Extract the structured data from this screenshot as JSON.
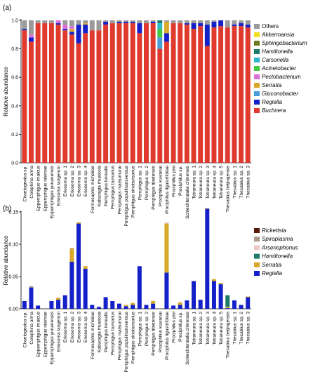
{
  "panels": [
    {
      "panel_label": "(a)",
      "chart_data": {
        "type": "bar",
        "stacked": true,
        "ylabel": "Relative abundance",
        "ylim": [
          0,
          1
        ],
        "yticks": [
          "0.0",
          "0.2",
          "0.4",
          "0.6",
          "0.8",
          "1.0"
        ],
        "categories": [
          "Chaetogeoica sp.",
          "Colophina arma",
          "Eppemphigus imaicus",
          "Eppemphigus nisimae",
          "Eppemphigus yunanensis",
          "Eriosoma langerum",
          "Eriosoma sp. 1",
          "Eriosoma sp. 2",
          "Eriosoma sp. 3",
          "Eriosoma sp. 4",
          "Formosaphis micheliae",
          "Kaburagia rhusicola",
          "Pemphigus borealis",
          "Pemphigus bursarius",
          "Pemphigus matsumurai",
          "Pemphigus populitransversus",
          "Pemphigus sinobursarius",
          "Pemphigus sp. 1",
          "Pemphigus sp. 2",
          "Pemphigus tibetensis",
          "Prociphilus kuwanai",
          "Prociphilus ligustrifoliae",
          "Prociphilus pini",
          "Prociphilus sp.",
          "Schlechtendalia chinensis",
          "Tetraneura sp. 1",
          "Tetraneura sp. 2",
          "Tetraneura sp. 3",
          "Tetraneura sp. 4",
          "Tetraneura sp. 5",
          "Thecabius beijingensis",
          "Thecabius sp. 1",
          "Thecabius sp. 2",
          "Thecabius sp. 3"
        ],
        "series": [
          {
            "name": "Buchnera",
            "color": "#e03a2f",
            "values": [
              0.93,
              0.85,
              0.98,
              0.98,
              0.98,
              0.97,
              0.93,
              0.9,
              0.84,
              0.91,
              0.93,
              0.93,
              0.97,
              0.98,
              0.98,
              0.98,
              0.98,
              0.91,
              0.98,
              0.98,
              0.8,
              0.85,
              0.98,
              0.98,
              0.97,
              0.94,
              0.96,
              0.82,
              0.95,
              0.96,
              0.95,
              0.96,
              0.96,
              0.95
            ]
          },
          {
            "name": "Regiella",
            "color": "#1420c8",
            "values": [
              0.01,
              0.03,
              0.0,
              0.0,
              0.0,
              0.01,
              0.01,
              0.02,
              0.13,
              0.06,
              0.0,
              0.0,
              0.02,
              0.0,
              0.01,
              0.01,
              0.01,
              0.07,
              0.0,
              0.01,
              0.0,
              0.06,
              0.0,
              0.0,
              0.01,
              0.04,
              0.02,
              0.15,
              0.04,
              0.04,
              0.0,
              0.01,
              0.02,
              0.02
            ]
          },
          {
            "name": "Gluconobacter",
            "color": "#4a9ed8",
            "values": [
              0,
              0,
              0,
              0,
              0,
              0,
              0,
              0,
              0,
              0,
              0,
              0,
              0,
              0,
              0,
              0,
              0,
              0,
              0,
              0,
              0.08,
              0,
              0,
              0,
              0,
              0,
              0,
              0,
              0,
              0,
              0,
              0,
              0,
              0
            ]
          },
          {
            "name": "Serratia",
            "color": "#d8a82a",
            "values": [
              0,
              0,
              0,
              0,
              0,
              0,
              0,
              0.02,
              0,
              0.01,
              0,
              0,
              0,
              0,
              0,
              0,
              0,
              0,
              0,
              0,
              0,
              0.08,
              0,
              0,
              0,
              0,
              0,
              0,
              0,
              0,
              0,
              0,
              0,
              0
            ]
          },
          {
            "name": "Pectobacterium",
            "color": "#d870d8",
            "values": [
              0,
              0.02,
              0,
              0,
              0,
              0.02,
              0.03,
              0.02,
              0,
              0,
              0,
              0,
              0,
              0,
              0,
              0,
              0,
              0,
              0,
              0,
              0,
              0,
              0,
              0,
              0,
              0,
              0,
              0,
              0,
              0,
              0,
              0,
              0,
              0
            ]
          },
          {
            "name": "Acinetobacter",
            "color": "#44c844",
            "values": [
              0,
              0,
              0,
              0,
              0,
              0,
              0,
              0,
              0,
              0,
              0,
              0,
              0,
              0,
              0,
              0,
              0,
              0,
              0,
              0,
              0.06,
              0,
              0,
              0,
              0,
              0,
              0,
              0,
              0,
              0,
              0,
              0,
              0,
              0
            ]
          },
          {
            "name": "Carsonella",
            "color": "#2ab8c8",
            "values": [
              0,
              0,
              0,
              0,
              0,
              0,
              0,
              0,
              0,
              0,
              0,
              0,
              0,
              0,
              0,
              0,
              0,
              0,
              0,
              0,
              0.04,
              0,
              0,
              0,
              0,
              0,
              0,
              0,
              0,
              0,
              0,
              0,
              0,
              0
            ]
          },
          {
            "name": "Hamiltonella",
            "color": "#1e7a6a",
            "values": [
              0,
              0,
              0,
              0,
              0,
              0,
              0,
              0,
              0,
              0,
              0,
              0,
              0,
              0,
              0,
              0,
              0,
              0,
              0,
              0,
              0.02,
              0,
              0,
              0,
              0,
              0,
              0,
              0,
              0,
              0,
              0,
              0,
              0,
              0
            ]
          },
          {
            "name": "Sphingobacterium",
            "color": "#6e7a1e",
            "values": [
              0,
              0,
              0,
              0,
              0,
              0,
              0,
              0,
              0,
              0,
              0,
              0,
              0,
              0,
              0,
              0,
              0,
              0,
              0,
              0,
              0,
              0,
              0,
              0,
              0,
              0,
              0,
              0,
              0,
              0,
              0,
              0,
              0,
              0
            ]
          },
          {
            "name": "Akkermansia",
            "color": "#f0e020",
            "values": [
              0,
              0,
              0,
              0,
              0,
              0,
              0,
              0,
              0,
              0,
              0,
              0,
              0,
              0,
              0,
              0,
              0,
              0,
              0,
              0,
              0,
              0,
              0,
              0,
              0,
              0,
              0,
              0,
              0,
              0,
              0,
              0,
              0,
              0
            ]
          },
          {
            "name": "Others",
            "color": "#9a9a9a",
            "values": [
              0.06,
              0.1,
              0.02,
              0.02,
              0.02,
              0.0,
              0.03,
              0.04,
              0.03,
              0.02,
              0.07,
              0.07,
              0.01,
              0.02,
              0.01,
              0.01,
              0.01,
              0.02,
              0.02,
              0.01,
              0.0,
              0.01,
              0.02,
              0.02,
              0.02,
              0.02,
              0.02,
              0.03,
              0.01,
              0.0,
              0.05,
              0.03,
              0.02,
              0.03
            ]
          }
        ],
        "legend": {
          "placement": "right",
          "entries": [
            "Others",
            "Akkermansia",
            "Sphingobacterium",
            "Hamiltonella",
            "Carsonella",
            "Acinetobacter",
            "Pectobacterium",
            "Serratia",
            "Gluconobacter",
            "Regiella",
            "Buchnera"
          ]
        },
        "grid": false
      }
    },
    {
      "panel_label": "(b)",
      "chart_data": {
        "type": "bar",
        "stacked": true,
        "ylabel": "Relative abundance",
        "ylim": [
          0,
          0.15
        ],
        "yticks": [
          "0.00",
          "0.05",
          "0.10",
          "0.15"
        ],
        "categories": [
          "Chaetogeoica sp.",
          "Colophina arma",
          "Eppemphigus imaicus",
          "Eppemphigus nisimae",
          "Eppemphigus yunanensis",
          "Eriosoma langerum",
          "Eriosoma sp. 1",
          "Eriosoma sp. 2",
          "Eriosoma sp. 3",
          "Eriosoma sp. 4",
          "Formosaphis micheliae",
          "Kaburagia rhusicola",
          "Pemphigus borealis",
          "Pemphigus bursarius",
          "Pemphigus matsumurai",
          "Pemphigus populitransversus",
          "Pemphigus sinobursarius",
          "Pemphigus sp. 1",
          "Pemphigus sp. 2",
          "Pemphigus tibetensis",
          "Prociphilus kuwanai",
          "Prociphilus ligustrifoliae",
          "Prociphilus pini",
          "Prociphilus sp.",
          "Schlechtendalia chinensis",
          "Tetraneura sp. 1",
          "Tetraneura sp. 2",
          "Tetraneura sp. 3",
          "Tetraneura sp. 4",
          "Tetraneura sp. 5",
          "Thecabius beijingensis",
          "Thecabius sp. 1",
          "Thecabius sp. 2",
          "Thecabius sp. 3"
        ],
        "series": [
          {
            "name": "Regiella",
            "color": "#1420c8",
            "values": [
              0.012,
              0.033,
              0.005,
              0.0,
              0.012,
              0.014,
              0.021,
              0.073,
              0.132,
              0.062,
              0.006,
              0.003,
              0.018,
              0.012,
              0.008,
              0.004,
              0.006,
              0.066,
              0.006,
              0.008,
              0.0,
              0.056,
              0.005,
              0.006,
              0.013,
              0.043,
              0.014,
              0.155,
              0.043,
              0.038,
              0.001,
              0.013,
              0.006,
              0.018
            ]
          },
          {
            "name": "Serratia",
            "color": "#d8a82a",
            "values": [
              0,
              0,
              0,
              0,
              0,
              0.003,
              0,
              0.02,
              0.002,
              0.004,
              0,
              0,
              0,
              0,
              0,
              0.002,
              0.003,
              0,
              0,
              0.004,
              0,
              0.076,
              0,
              0.004,
              0,
              0,
              0,
              0.001,
              0.003,
              0.002,
              0.002,
              0,
              0,
              0.001
            ]
          },
          {
            "name": "Hamiltonella",
            "color": "#1e7a6a",
            "values": [
              0,
              0,
              0,
              0,
              0,
              0,
              0,
              0,
              0,
              0,
              0,
              0,
              0,
              0,
              0,
              0,
              0,
              0,
              0,
              0,
              0,
              0,
              0,
              0,
              0,
              0,
              0,
              0,
              0,
              0,
              0.018,
              0,
              0,
              0
            ]
          },
          {
            "name": "Arsenophonus",
            "color": "#f0c8c8",
            "values": [
              0,
              0,
              0,
              0,
              0,
              0,
              0,
              0,
              0,
              0,
              0,
              0,
              0,
              0,
              0,
              0,
              0,
              0,
              0,
              0,
              0,
              0.002,
              0,
              0,
              0,
              0,
              0,
              0,
              0,
              0,
              0,
              0,
              0,
              0
            ]
          },
          {
            "name": "Spiroplasma",
            "color": "#a89a88",
            "values": [
              0,
              0.002,
              0,
              0,
              0,
              0,
              0,
              0.001,
              0,
              0,
              0,
              0,
              0,
              0,
              0,
              0,
              0,
              0,
              0,
              0,
              0,
              0,
              0,
              0,
              0,
              0,
              0,
              0,
              0,
              0,
              0,
              0,
              0,
              0
            ]
          },
          {
            "name": "Rickettsia",
            "color": "#5a1a0a",
            "values": [
              0,
              0,
              0,
              0,
              0,
              0,
              0,
              0,
              0,
              0,
              0,
              0,
              0,
              0,
              0,
              0,
              0,
              0,
              0,
              0,
              0,
              0,
              0,
              0,
              0,
              0,
              0,
              0,
              0,
              0,
              0,
              0,
              0,
              0
            ]
          }
        ],
        "legend": {
          "placement": "right",
          "entries": [
            "Rickettsia",
            "Spiroplasma",
            "Arsenophonus",
            "Hamiltonella",
            "Serratia",
            "Regiella"
          ]
        },
        "grid": false
      }
    }
  ]
}
